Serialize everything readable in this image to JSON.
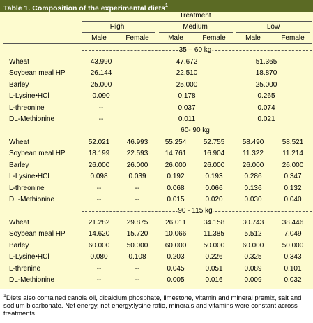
{
  "header": {
    "title": "Table 1.  Composition of the experimental diets",
    "title_mark": "1"
  },
  "table": {
    "treatment": "Treatment",
    "groups": [
      "High",
      "Medium",
      "Low"
    ],
    "sexes": [
      "Male",
      "Female",
      "Male",
      "Female",
      "Male",
      "Female"
    ],
    "sections": [
      {
        "title": "35 – 60 kg",
        "rows": [
          {
            "label": "Wheat",
            "values": [
              "43.990",
              "47.672",
              "51.365"
            ]
          },
          {
            "label": "Soybean meal HP",
            "values": [
              "26.144",
              "22.510",
              "18.870"
            ]
          },
          {
            "label": "Barley",
            "values": [
              "25.000",
              "25.000",
              "25.000"
            ]
          },
          {
            "label": "L-Lysine•HCl",
            "values": [
              "0.090",
              "0.178",
              "0.265"
            ]
          },
          {
            "label": "L-threonine",
            "values": [
              "--",
              "0.037",
              "0.074"
            ]
          },
          {
            "label": "DL-Methionine",
            "values": [
              "--",
              "0.011",
              "0.021"
            ]
          }
        ]
      },
      {
        "title": "60- 90 kg",
        "rows": [
          {
            "label": "Wheat",
            "values": [
              "52.021",
              "46.993",
              "55.254",
              "52.755",
              "58.490",
              "58.521"
            ]
          },
          {
            "label": "Soybean meal HP",
            "values": [
              "18.199",
              "22.593",
              "14.761",
              "16.904",
              "11.322",
              "11.214"
            ]
          },
          {
            "label": "Barley",
            "values": [
              "26.000",
              "26.000",
              "26.000",
              "26.000",
              "26.000",
              "26.000"
            ]
          },
          {
            "label": "L-Lysine•HCl",
            "values": [
              "0.098",
              "0.039",
              "0.192",
              "0.193",
              "0.286",
              "0.347"
            ]
          },
          {
            "label": "L-threonine",
            "values": [
              "--",
              "--",
              "0.068",
              "0.066",
              "0.136",
              "0.132"
            ]
          },
          {
            "label": "DL-Methionine",
            "values": [
              "--",
              "--",
              "0.015",
              "0.020",
              "0.030",
              "0.040"
            ]
          }
        ]
      },
      {
        "title": "90 - 115 kg",
        "rows": [
          {
            "label": "Wheat",
            "values": [
              "21.282",
              "29.875",
              "26.011",
              "34.158",
              "30.743",
              "38.446"
            ]
          },
          {
            "label": "Soybean meal HP",
            "values": [
              "14.620",
              "15.720",
              "10.066",
              "11.385",
              "5.512",
              "7.049"
            ]
          },
          {
            "label": "Barley",
            "values": [
              "60.000",
              "50.000",
              "60.000",
              "50.000",
              "60.000",
              "50.000"
            ]
          },
          {
            "label": "L-Lysine•HCl",
            "values": [
              "0.080",
              "0.108",
              "0.203",
              "0.226",
              "0.325",
              "0.343"
            ]
          },
          {
            "label": "L-threnine",
            "values": [
              "--",
              "--",
              "0.045",
              "0.051",
              "0.089",
              "0.101"
            ]
          },
          {
            "label": "DL-Methionine",
            "values": [
              "--",
              "--",
              "0.005",
              "0.016",
              "0.009",
              "0.032"
            ]
          }
        ]
      }
    ]
  },
  "footnote": {
    "mark": "1",
    "text": "Diets also contained canola oil, dicalcium phosphate, limestone, vitamin and mineral premix, salt and sodium bicarbonate.  Net energy, net energy:lysine ratio, minerals and vitamins were constant across treatments."
  }
}
